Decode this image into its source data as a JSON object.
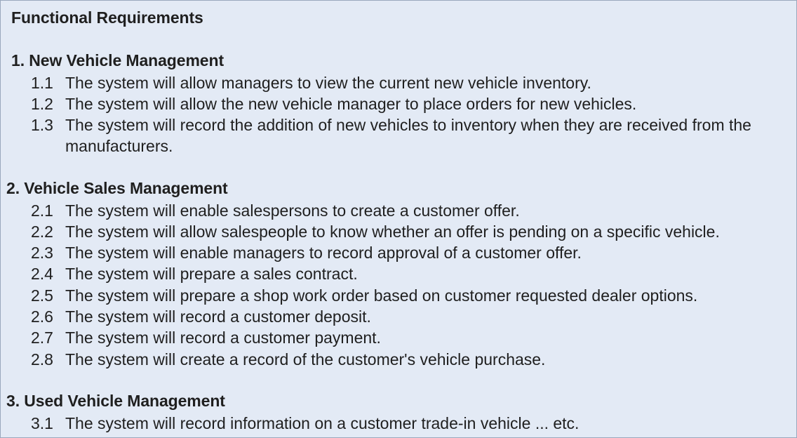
{
  "document": {
    "title": "Functional Requirements",
    "sections": [
      {
        "heading": "1. New Vehicle Management",
        "items": [
          {
            "num": "1.1",
            "text": "The system will allow managers to view the current new vehicle inventory."
          },
          {
            "num": "1.2",
            "text": "The system will allow the new vehicle manager to place orders for new vehicles."
          },
          {
            "num": "1.3",
            "text": "The system will record the addition of new vehicles to inventory when they are received from the manufacturers."
          }
        ]
      },
      {
        "heading": "2. Vehicle Sales Management",
        "items": [
          {
            "num": "2.1",
            "text": "The system will enable salespersons to create a customer offer."
          },
          {
            "num": "2.2",
            "text": "The system will allow salespeople to know whether an offer is pending on a specific vehicle."
          },
          {
            "num": "2.3",
            "text": "The system will enable managers to record approval of a customer offer."
          },
          {
            "num": "2.4",
            "text": "The system will prepare a sales contract."
          },
          {
            "num": "2.5",
            "text": "The system will prepare a shop work order based on customer requested dealer options."
          },
          {
            "num": "2.6",
            "text": "The system will record a customer deposit."
          },
          {
            "num": "2.7",
            "text": "The system will record a customer payment."
          },
          {
            "num": "2.8",
            "text": "The system will create a record of the customer's vehicle purchase."
          }
        ]
      },
      {
        "heading": "3. Used Vehicle Management",
        "items": [
          {
            "num": "3.1",
            "text": "The system will record information on a customer trade-in vehicle ... etc."
          }
        ]
      }
    ]
  }
}
